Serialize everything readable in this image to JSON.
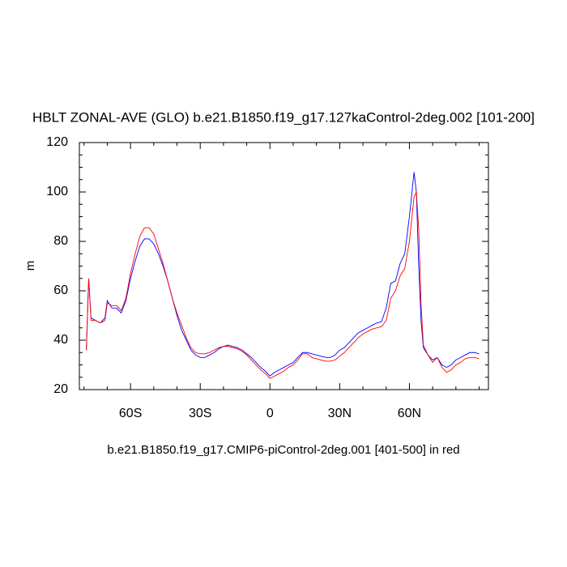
{
  "chart_data": {
    "type": "line",
    "title": "HBLT ZONAL-AVE (GLO) b.e21.B1850.f19_g17.127kaControl-2deg.002 [101-200]",
    "ylabel": "m",
    "xlabel": "b.e21.B1850.f19_g17.CMIP6-piControl-2deg.001 [401-500] in red",
    "x": [
      -79,
      -78,
      -77,
      -75,
      -73,
      -71,
      -70,
      -68,
      -66,
      -64,
      -62,
      -60,
      -58,
      -56,
      -54,
      -52,
      -50,
      -48,
      -46,
      -44,
      -42,
      -40,
      -38,
      -36,
      -34,
      -32,
      -30,
      -28,
      -26,
      -24,
      -22,
      -20,
      -18,
      -16,
      -14,
      -12,
      -10,
      -8,
      -6,
      -4,
      -2,
      0,
      2,
      4,
      6,
      8,
      10,
      12,
      14,
      16,
      18,
      20,
      22,
      24,
      26,
      28,
      30,
      32,
      34,
      36,
      38,
      40,
      42,
      44,
      46,
      48,
      50,
      52,
      54,
      56,
      58,
      60,
      62,
      63,
      64,
      65,
      66,
      68,
      70,
      72,
      74,
      76,
      78,
      80,
      82,
      84,
      86,
      88,
      90
    ],
    "series": [
      {
        "color": "#0000ff",
        "values": [
          36,
          65,
          49,
          48,
          47,
          49,
          56,
          53,
          53,
          51,
          56,
          65,
          72,
          78,
          81,
          81,
          79,
          75,
          70,
          64,
          57,
          50,
          44,
          40,
          36,
          34,
          33,
          33,
          34,
          35,
          36.5,
          37.5,
          38,
          37.5,
          37,
          36,
          34.5,
          33,
          31,
          29,
          27.5,
          25.5,
          27,
          28,
          29,
          30,
          31,
          33,
          35,
          35,
          34.5,
          34,
          33.5,
          33,
          33,
          34,
          36,
          37,
          39,
          41,
          43,
          44,
          45,
          46,
          47,
          47.5,
          53,
          63,
          64,
          71,
          75,
          90,
          108,
          100,
          70,
          48,
          37,
          34,
          32,
          33,
          30,
          29,
          30,
          32,
          33,
          34,
          35,
          35,
          34.5
        ]
      },
      {
        "color": "#ff0000",
        "values": [
          36,
          65,
          48,
          48,
          47,
          48,
          55,
          54,
          54,
          52,
          57,
          67,
          75,
          82,
          85.5,
          85.5,
          83,
          77,
          71,
          64,
          57,
          51,
          46,
          41,
          37,
          35,
          34.5,
          34.5,
          35,
          36,
          37,
          37.5,
          37.5,
          37,
          36.5,
          35.5,
          34,
          32,
          30,
          28,
          26.5,
          24.5,
          25.5,
          26.5,
          27.5,
          29,
          30,
          32,
          34.5,
          34.5,
          33,
          32.5,
          32,
          31.5,
          31.5,
          32,
          33.5,
          35,
          37,
          39,
          41,
          42.5,
          43.5,
          44.5,
          45,
          45.5,
          48,
          57,
          60,
          66,
          69,
          80,
          98,
          100,
          85,
          55,
          38,
          34,
          31,
          33,
          29,
          27,
          28,
          30,
          31,
          32.5,
          33,
          33,
          32.5
        ]
      }
    ],
    "xlim": [
      -82,
      94
    ],
    "ylim": [
      20,
      120
    ],
    "xticks": [
      {
        "value": -60,
        "label": "60S"
      },
      {
        "value": -30,
        "label": "30S"
      },
      0,
      {
        "value": 30,
        "label": "30N"
      },
      {
        "value": 60,
        "label": "60N"
      }
    ],
    "yticks": [
      20,
      40,
      60,
      80,
      100,
      120
    ],
    "xminorticks": [
      -80,
      -70,
      -50,
      -40,
      -20,
      -10,
      10,
      20,
      40,
      50,
      70,
      80,
      90
    ],
    "yminorticks": [
      25,
      30,
      35,
      45,
      50,
      55,
      65,
      70,
      75,
      85,
      90,
      95,
      105,
      110,
      115
    ]
  }
}
